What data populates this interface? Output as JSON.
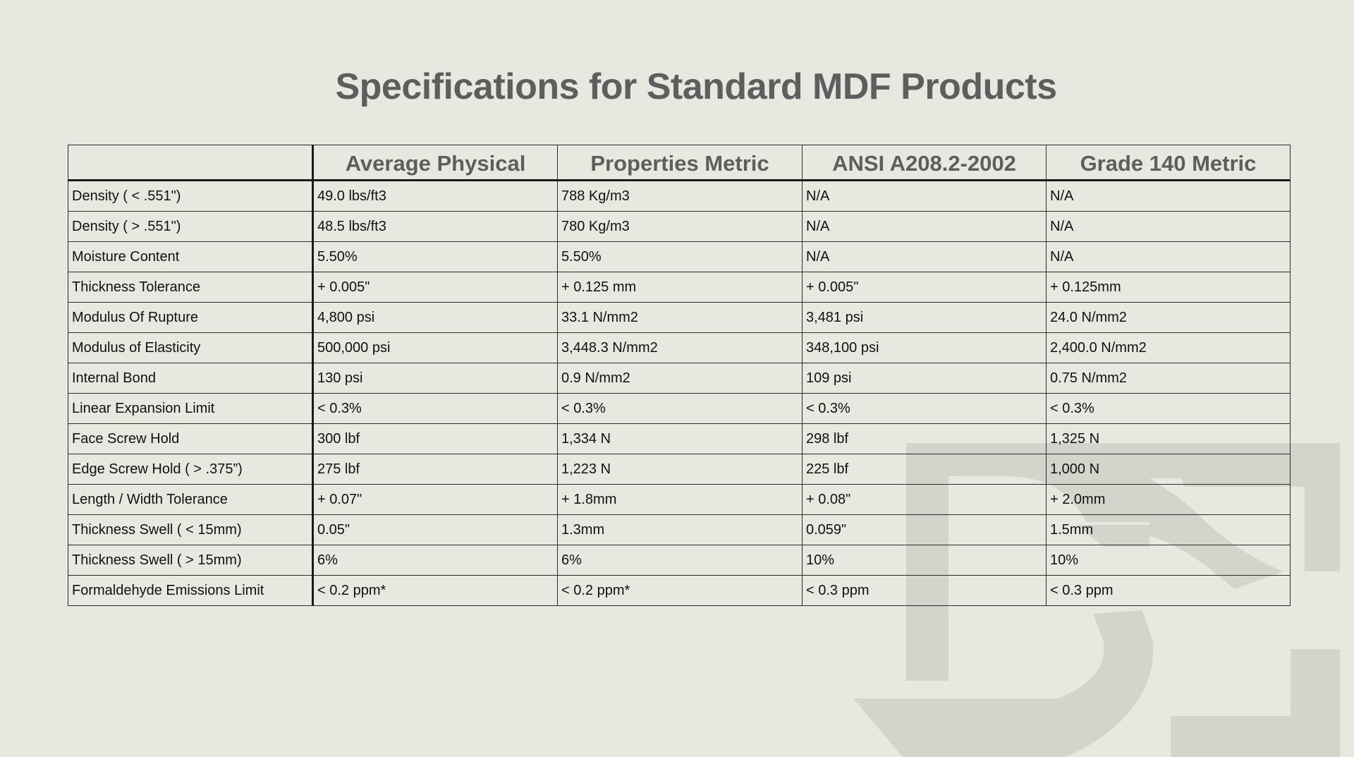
{
  "page": {
    "title": "Specifications for Standard MDF Products"
  },
  "table": {
    "headers": [
      "",
      "Average Physical",
      "Properties Metric",
      "ANSI A208.2-2002",
      "Grade 140 Metric"
    ],
    "rows": [
      [
        "Density ( < .551\")",
        "49.0 lbs/ft3",
        "788 Kg/m3",
        "N/A",
        "N/A"
      ],
      [
        "Density ( > .551\")",
        "48.5 lbs/ft3",
        "780 Kg/m3",
        "N/A",
        "N/A"
      ],
      [
        "Moisture Content",
        "5.50%",
        "5.50%",
        "N/A",
        "N/A"
      ],
      [
        "Thickness Tolerance",
        "+ 0.005\"",
        "+ 0.125 mm",
        "+ 0.005\"",
        "+ 0.125mm"
      ],
      [
        "Modulus Of Rupture",
        "4,800 psi",
        "33.1 N/mm2",
        "3,481 psi",
        "24.0 N/mm2"
      ],
      [
        "Modulus of Elasticity",
        "500,000 psi",
        "3,448.3 N/mm2",
        "348,100 psi",
        "2,400.0 N/mm2"
      ],
      [
        "Internal Bond",
        "130 psi",
        "0.9 N/mm2",
        "109 psi",
        "0.75 N/mm2"
      ],
      [
        "Linear Expansion Limit",
        "< 0.3%",
        "< 0.3%",
        "< 0.3%",
        "< 0.3%"
      ],
      [
        "Face Screw Hold",
        "300 lbf",
        "1,334 N",
        "298 lbf",
        "1,325 N"
      ],
      [
        "Edge Screw Hold ( > .375”)",
        "275 lbf",
        "1,223 N",
        "225 lbf",
        "1,000 N"
      ],
      [
        "Length / Width Tolerance",
        "+ 0.07\"",
        "+ 1.8mm",
        "+ 0.08\"",
        "+ 2.0mm"
      ],
      [
        "Thickness Swell ( < 15mm)",
        "0.05\"",
        "1.3mm",
        "0.059\"",
        "1.5mm"
      ],
      [
        "Thickness Swell ( > 15mm)",
        "6%",
        "6%",
        "10%",
        "10%"
      ],
      [
        "Formaldehyde Emissions Limit",
        "< 0.2 ppm*",
        "< 0.2 ppm*",
        "< 0.3 ppm",
        "< 0.3 ppm"
      ]
    ]
  },
  "colors": {
    "background": "#e8e7e0",
    "title": "#5e5e5e",
    "watermark": "#d5d4cc",
    "border": "#2b2b2b"
  },
  "icons": {
    "watermark": "brand-logo-watermark"
  }
}
